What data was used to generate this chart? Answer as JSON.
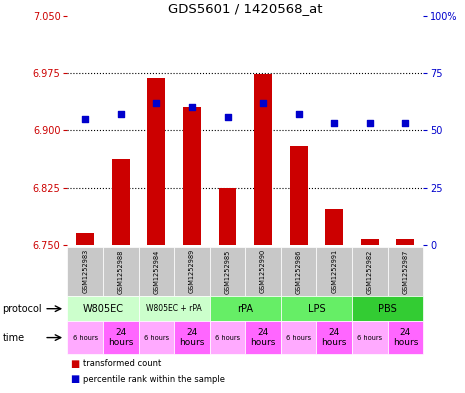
{
  "title": "GDS5601 / 1420568_at",
  "samples": [
    "GSM1252983",
    "GSM1252988",
    "GSM1252984",
    "GSM1252989",
    "GSM1252985",
    "GSM1252990",
    "GSM1252986",
    "GSM1252991",
    "GSM1252982",
    "GSM1252987"
  ],
  "bar_values": [
    6.765,
    6.862,
    6.968,
    6.931,
    6.825,
    6.974,
    6.879,
    6.797,
    6.758,
    6.757
  ],
  "bar_bottom": 6.75,
  "percentile_values": [
    55,
    57,
    62,
    60,
    56,
    62,
    57,
    53,
    53,
    53
  ],
  "ylim_left": [
    6.75,
    7.05
  ],
  "ylim_right": [
    0,
    100
  ],
  "yticks_left": [
    6.75,
    6.825,
    6.9,
    6.975,
    7.05
  ],
  "yticks_right": [
    0,
    25,
    50,
    75,
    100
  ],
  "ytick_labels_right": [
    "0",
    "25",
    "50",
    "75",
    "100%"
  ],
  "bar_color": "#cc0000",
  "percentile_color": "#0000cc",
  "bg_color": "#ffffff",
  "protocol_groups": [
    {
      "label": "W805EC",
      "start": 0,
      "end": 2,
      "color": "#ccffcc"
    },
    {
      "label": "W805EC + rPA",
      "start": 2,
      "end": 4,
      "color": "#ccffcc"
    },
    {
      "label": "rPA",
      "start": 4,
      "end": 6,
      "color": "#66ee66"
    },
    {
      "label": "LPS",
      "start": 6,
      "end": 8,
      "color": "#66ee66"
    },
    {
      "label": "PBS",
      "start": 8,
      "end": 10,
      "color": "#33cc33"
    }
  ],
  "times": [
    "6 hours",
    "24\nhours",
    "6 hours",
    "24\nhours",
    "6 hours",
    "24\nhours",
    "6 hours",
    "24\nhours",
    "6 hours",
    "24\nhours"
  ],
  "time_color_6h": "#ffaaff",
  "time_color_24h": "#ff66ff",
  "sample_bg_color": "#c8c8c8",
  "left_tick_color": "#cc0000",
  "right_tick_color": "#0000cc",
  "left_label_color": "#cc0000",
  "right_label_color": "#0000cc"
}
